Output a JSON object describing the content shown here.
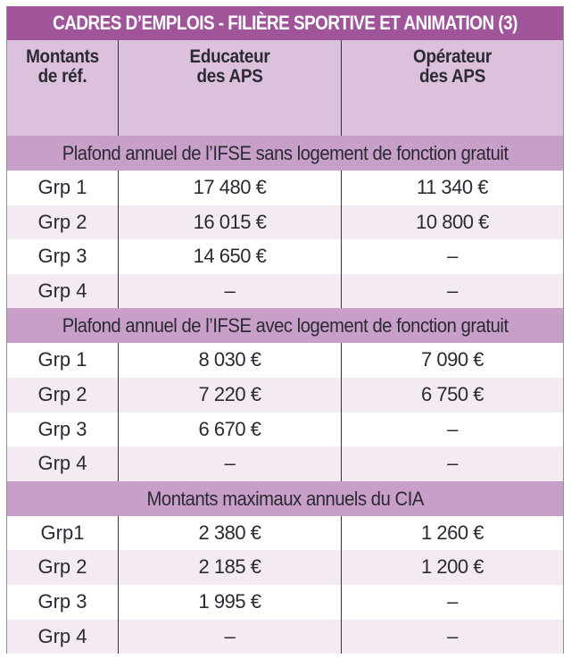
{
  "title": "CADRES D’EMPLOIS - FILIÈRE SPORTIVE ET ANIMATION (3)",
  "colors": {
    "title_band": "#a0559b",
    "header_row": "#dcc1dd",
    "section_band": "#c79fc8",
    "row_alt": "#f3eaf3",
    "row_base": "#ffffff",
    "text": "#2b2a33"
  },
  "header": {
    "col1": [
      "Montants",
      "de réf."
    ],
    "col2": [
      "Educateur",
      "des APS"
    ],
    "col3": [
      "Opérateur",
      "des APS"
    ]
  },
  "sections": [
    {
      "label": "Plafond annuel de l’IFSE sans logement de fonction gratuit",
      "rows": [
        {
          "group": "Grp 1",
          "educateur": "17 480 €",
          "operateur": "11 340 €"
        },
        {
          "group": "Grp 2",
          "educateur": "16 015 €",
          "operateur": "10 800 €"
        },
        {
          "group": "Grp 3",
          "educateur": "14 650 €",
          "operateur": "–"
        },
        {
          "group": "Grp 4",
          "educateur": "–",
          "operateur": "–"
        }
      ]
    },
    {
      "label": "Plafond annuel de l’IFSE avec logement de fonction gratuit",
      "rows": [
        {
          "group": "Grp 1",
          "educateur": "8 030 €",
          "operateur": "7 090 €"
        },
        {
          "group": "Grp 2",
          "educateur": "7 220 €",
          "operateur": "6 750 €"
        },
        {
          "group": "Grp 3",
          "educateur": "6 670 €",
          "operateur": "–"
        },
        {
          "group": "Grp 4",
          "educateur": "–",
          "operateur": "–"
        }
      ]
    },
    {
      "label": "Montants maximaux annuels du CIA",
      "rows": [
        {
          "group": "Grp1",
          "educateur": "2 380 €",
          "operateur": "1 260 €"
        },
        {
          "group": "Grp 2",
          "educateur": "2 185 €",
          "operateur": "1 200 €"
        },
        {
          "group": "Grp 3",
          "educateur": "1 995 €",
          "operateur": "–"
        },
        {
          "group": "Grp 4",
          "educateur": "–",
          "operateur": "–"
        }
      ]
    }
  ]
}
